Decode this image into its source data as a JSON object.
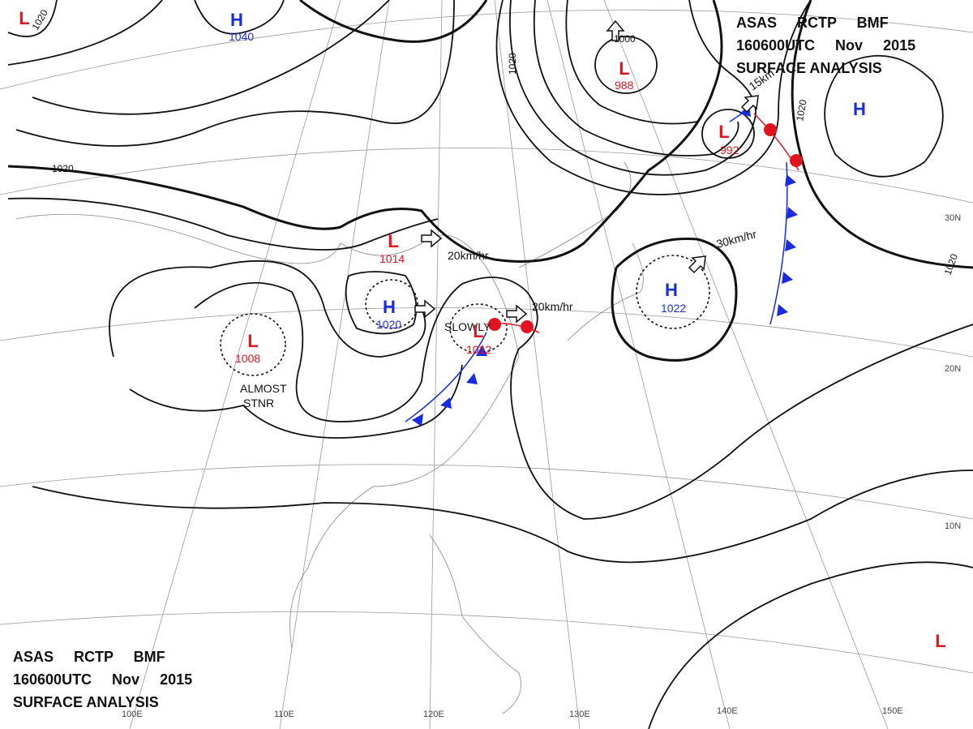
{
  "header": {
    "lines": [
      "ASAS RCTP BMF",
      "160600UTC Nov 2015",
      "SURFACE ANALYSIS"
    ]
  },
  "pressure_systems": [
    {
      "symbol": "L",
      "value": null
    },
    {
      "symbol": "H",
      "value": "1040"
    },
    {
      "symbol": "L",
      "value": "988"
    },
    {
      "symbol": "L",
      "value": "992"
    },
    {
      "symbol": "H",
      "value": null
    },
    {
      "symbol": "L",
      "value": "1014"
    },
    {
      "symbol": "H",
      "value": "1020"
    },
    {
      "symbol": "L",
      "value": "1008"
    },
    {
      "symbol": "L",
      "value": "1012"
    },
    {
      "symbol": "H",
      "value": "1022"
    },
    {
      "symbol": "L",
      "value": null
    }
  ],
  "isobar_labels": [
    "1020",
    "1020",
    "1000",
    "1020",
    "1020",
    "1020"
  ],
  "annotations": [
    "20km/hr",
    "20km/hr",
    "30km/hr",
    "15km",
    "SLOWLY",
    "ALMOST",
    "STNR"
  ],
  "latitude_labels": [
    "30N",
    "20N",
    "10N"
  ],
  "longitude_labels": [
    "100E",
    "110E",
    "120E",
    "130E",
    "140E",
    "150E"
  ]
}
